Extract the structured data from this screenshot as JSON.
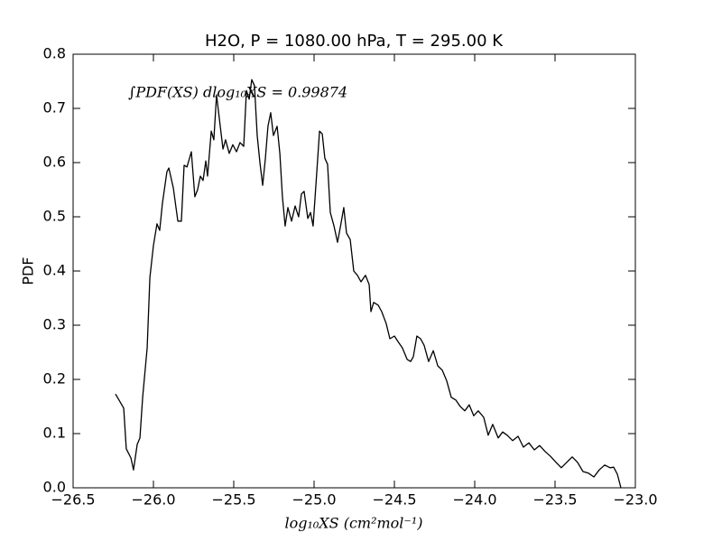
{
  "chart_data": {
    "type": "line",
    "title": "H2O, P = 1080.00 hPa, T = 295.00 K",
    "x_label": "log₁₀XS (cm²mol⁻¹)",
    "y_label": "PDF",
    "annotation": "∫PDF(XS) dlog₁₀XS = 0.99874",
    "xlim": [
      -26.5,
      -23.0
    ],
    "ylim": [
      0,
      0.8
    ],
    "xticks": [
      {
        "value": -26.5,
        "label": "−26.5"
      },
      {
        "value": -26.0,
        "label": "−26.0"
      },
      {
        "value": -25.5,
        "label": "−25.5"
      },
      {
        "value": -25.0,
        "label": "−25.0"
      },
      {
        "value": -24.5,
        "label": "−24.5"
      },
      {
        "value": -24.0,
        "label": "−24.0"
      },
      {
        "value": -23.5,
        "label": "−23.5"
      },
      {
        "value": -23.0,
        "label": "−23.0"
      }
    ],
    "yticks": [
      {
        "value": 0,
        "label": "0.0"
      },
      0.1,
      0.2,
      0.3,
      0.4,
      0.5,
      0.6,
      0.7,
      0.8
    ],
    "grid": false,
    "series": [
      {
        "color": "#000000",
        "x": [
          -26.236,
          -26.185,
          -26.169,
          -26.14,
          -26.124,
          -26.101,
          -26.084,
          -26.067,
          -26.039,
          -26.022,
          -26.0,
          -25.978,
          -25.961,
          -25.944,
          -25.916,
          -25.904,
          -25.876,
          -25.848,
          -25.826,
          -25.809,
          -25.791,
          -25.764,
          -25.742,
          -25.725,
          -25.708,
          -25.691,
          -25.674,
          -25.663,
          -25.64,
          -25.624,
          -25.607,
          -25.584,
          -25.567,
          -25.551,
          -25.528,
          -25.506,
          -25.483,
          -25.461,
          -25.438,
          -25.421,
          -25.404,
          -25.388,
          -25.371,
          -25.354,
          -25.337,
          -25.32,
          -25.303,
          -25.287,
          -25.27,
          -25.253,
          -25.23,
          -25.213,
          -25.197,
          -25.18,
          -25.163,
          -25.14,
          -25.118,
          -25.096,
          -25.079,
          -25.062,
          -25.039,
          -25.022,
          -25.006,
          -24.983,
          -24.966,
          -24.949,
          -24.933,
          -24.916,
          -24.899,
          -24.876,
          -24.854,
          -24.837,
          -24.815,
          -24.798,
          -24.775,
          -24.753,
          -24.73,
          -24.708,
          -24.68,
          -24.657,
          -24.646,
          -24.629,
          -24.601,
          -24.579,
          -24.551,
          -24.528,
          -24.5,
          -24.478,
          -24.45,
          -24.421,
          -24.399,
          -24.382,
          -24.36,
          -24.337,
          -24.315,
          -24.287,
          -24.258,
          -24.23,
          -24.202,
          -24.174,
          -24.146,
          -24.118,
          -24.09,
          -24.062,
          -24.034,
          -24.006,
          -23.978,
          -23.944,
          -23.916,
          -23.888,
          -23.854,
          -23.826,
          -23.798,
          -23.764,
          -23.73,
          -23.697,
          -23.663,
          -23.629,
          -23.596,
          -23.562,
          -23.528,
          -23.494,
          -23.461,
          -23.427,
          -23.393,
          -23.36,
          -23.326,
          -23.292,
          -23.258,
          -23.225,
          -23.191,
          -23.157,
          -23.135,
          -23.112,
          -23.09
        ],
        "values": [
          0.173,
          0.147,
          0.072,
          0.055,
          0.033,
          0.08,
          0.092,
          0.167,
          0.258,
          0.388,
          0.447,
          0.487,
          0.475,
          0.525,
          0.583,
          0.59,
          0.553,
          0.492,
          0.492,
          0.595,
          0.592,
          0.62,
          0.537,
          0.55,
          0.575,
          0.567,
          0.603,
          0.575,
          0.658,
          0.642,
          0.725,
          0.667,
          0.625,
          0.642,
          0.617,
          0.633,
          0.62,
          0.637,
          0.63,
          0.733,
          0.717,
          0.753,
          0.742,
          0.65,
          0.6,
          0.558,
          0.608,
          0.667,
          0.692,
          0.65,
          0.667,
          0.617,
          0.537,
          0.483,
          0.517,
          0.492,
          0.52,
          0.5,
          0.542,
          0.547,
          0.497,
          0.508,
          0.483,
          0.583,
          0.658,
          0.653,
          0.608,
          0.597,
          0.508,
          0.483,
          0.453,
          0.48,
          0.517,
          0.47,
          0.458,
          0.4,
          0.392,
          0.38,
          0.392,
          0.375,
          0.325,
          0.342,
          0.337,
          0.325,
          0.303,
          0.275,
          0.28,
          0.27,
          0.258,
          0.237,
          0.233,
          0.242,
          0.28,
          0.275,
          0.263,
          0.233,
          0.253,
          0.225,
          0.217,
          0.197,
          0.167,
          0.162,
          0.15,
          0.142,
          0.153,
          0.133,
          0.142,
          0.13,
          0.097,
          0.117,
          0.092,
          0.103,
          0.097,
          0.087,
          0.095,
          0.075,
          0.083,
          0.07,
          0.078,
          0.067,
          0.058,
          0.047,
          0.037,
          0.047,
          0.057,
          0.047,
          0.03,
          0.027,
          0.02,
          0.033,
          0.042,
          0.037,
          0.038,
          0.025,
          0.0
        ]
      }
    ]
  }
}
